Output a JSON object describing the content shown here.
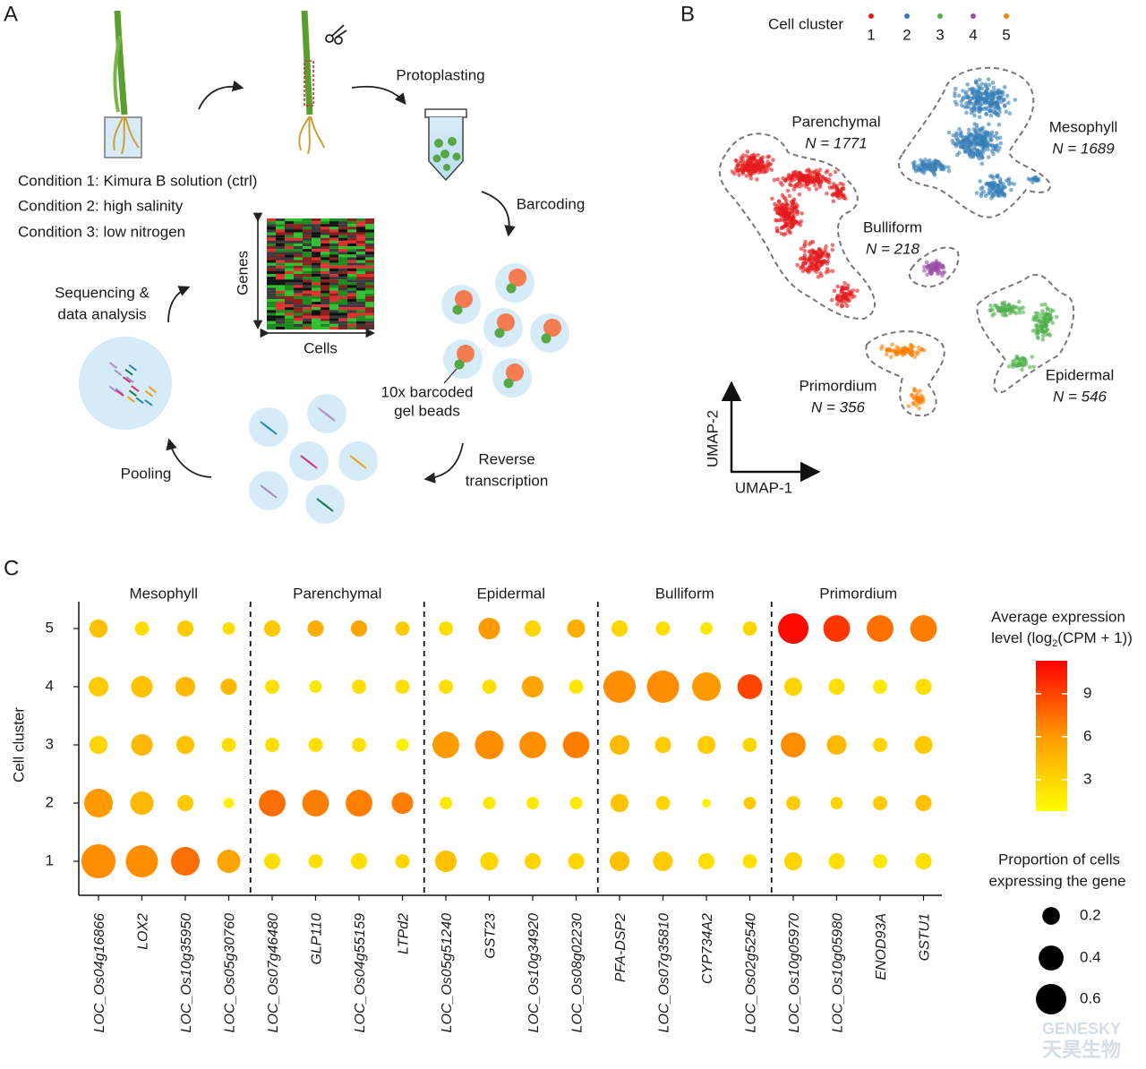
{
  "panel_a": {
    "label": "A",
    "protoplasting": "Protoplasting",
    "barcoding": "Barcoding",
    "conditions": [
      "Condition 1: Kimura B solution (ctrl)",
      "Condition 2: high salinity",
      "Condition 3: low nitrogen"
    ],
    "genes": "Genes",
    "cells": "Cells",
    "sequencing": [
      "Sequencing &",
      "data analysis"
    ],
    "beads": [
      "10x barcoded",
      "gel beads"
    ],
    "reverse": [
      "Reverse",
      "transcription"
    ],
    "pooling": "Pooling"
  },
  "panel_b": {
    "label": "B",
    "legend_title": "Cell cluster",
    "legend": [
      {
        "name": "1",
        "color": "#e41a1c"
      },
      {
        "name": "2",
        "color": "#377eb8"
      },
      {
        "name": "3",
        "color": "#4daf4a"
      },
      {
        "name": "4",
        "color": "#984ea3"
      },
      {
        "name": "5",
        "color": "#ff7f00"
      }
    ],
    "clusters": [
      {
        "name": "Parenchymal",
        "count": "N = 1771"
      },
      {
        "name": "Mesophyll",
        "count": "N = 1689"
      },
      {
        "name": "Bulliform",
        "count": "N = 218"
      },
      {
        "name": "Epidermal",
        "count": "N = 546"
      },
      {
        "name": "Primordium",
        "count": "N = 356"
      }
    ],
    "xlabel": "UMAP-1",
    "ylabel": "UMAP-2"
  },
  "chart_data": {
    "type": "dot",
    "label": "C",
    "ylabel": "Cell cluster",
    "groups": [
      {
        "name": "Mesophyll",
        "genes": [
          "LOC_Os04g16866",
          "LOX2",
          "LOC_Os10g35950",
          "LOC_Os05g30760"
        ]
      },
      {
        "name": "Parenchymal",
        "genes": [
          "LOC_Os07g46480",
          "GLP110",
          "LOC_Os04g55159",
          "LTPd2"
        ]
      },
      {
        "name": "Epidermal",
        "genes": [
          "LOC_Os05g51240",
          "GST23",
          "LOC_Os10g34920",
          "LOC_Os08g02230"
        ]
      },
      {
        "name": "Bulliform",
        "genes": [
          "PFA-DSP2",
          "LOC_Os07g35810",
          "CYP734A2",
          "LOC_Os02g52540"
        ]
      },
      {
        "name": "Primordium",
        "genes": [
          "LOC_Os10g05970",
          "LOC_Os10g05980",
          "ENOD93A",
          "GSTU1"
        ]
      }
    ],
    "series": [
      {
        "name": "1",
        "expression": [
          6.5,
          6.5,
          7.5,
          5.5,
          2.5,
          2.5,
          2.5,
          3,
          4,
          3,
          3,
          3,
          4,
          3.5,
          2.5,
          2.5,
          3,
          2.5,
          2,
          2.5
        ],
        "proportion": [
          0.75,
          0.67,
          0.53,
          0.35,
          0.17,
          0.13,
          0.17,
          0.13,
          0.3,
          0.21,
          0.17,
          0.17,
          0.25,
          0.25,
          0.17,
          0.13,
          0.21,
          0.17,
          0.13,
          0.17
        ]
      },
      {
        "name": "2",
        "expression": [
          6,
          4.5,
          3.5,
          1.5,
          7.5,
          7,
          7,
          7,
          2,
          2,
          2,
          2,
          4,
          3,
          1.5,
          3.5,
          3.5,
          3,
          3.5,
          4
        ],
        "proportion": [
          0.53,
          0.35,
          0.17,
          0.07,
          0.46,
          0.46,
          0.46,
          0.3,
          0.1,
          0.1,
          0.1,
          0.1,
          0.21,
          0.13,
          0.05,
          0.1,
          0.13,
          0.1,
          0.13,
          0.17
        ]
      },
      {
        "name": "3",
        "expression": [
          3,
          4.5,
          4,
          2.5,
          2.5,
          2.5,
          2.5,
          1.5,
          6,
          6.5,
          6.5,
          7,
          4.5,
          3.5,
          3.5,
          3,
          6.5,
          4.5,
          3,
          3.5
        ],
        "proportion": [
          0.21,
          0.3,
          0.21,
          0.13,
          0.13,
          0.13,
          0.13,
          0.1,
          0.46,
          0.53,
          0.46,
          0.46,
          0.25,
          0.17,
          0.21,
          0.13,
          0.4,
          0.25,
          0.13,
          0.21
        ]
      },
      {
        "name": "4",
        "expression": [
          3.5,
          4,
          4.5,
          4.5,
          2.5,
          2,
          2.5,
          2.5,
          2.5,
          2.5,
          5.5,
          2,
          6.5,
          6.5,
          6,
          9,
          3,
          2.5,
          2,
          2.5
        ],
        "proportion": [
          0.25,
          0.3,
          0.25,
          0.17,
          0.13,
          0.1,
          0.13,
          0.13,
          0.13,
          0.13,
          0.3,
          0.13,
          0.67,
          0.67,
          0.53,
          0.4,
          0.21,
          0.17,
          0.13,
          0.17
        ]
      },
      {
        "name": "5",
        "expression": [
          4,
          2.5,
          3.5,
          2.5,
          3.5,
          5,
          5.5,
          3.5,
          2.5,
          6,
          3,
          5,
          3,
          2.5,
          2,
          3,
          11,
          9.5,
          7.5,
          7
        ],
        "proportion": [
          0.21,
          0.13,
          0.17,
          0.1,
          0.17,
          0.17,
          0.17,
          0.13,
          0.13,
          0.3,
          0.17,
          0.21,
          0.17,
          0.13,
          0.1,
          0.13,
          0.6,
          0.46,
          0.46,
          0.46
        ]
      }
    ],
    "color_title": [
      "Average expression",
      "level (log",
      "2",
      "(CPM + 1))"
    ],
    "colorscale": [
      "#ffff00",
      "#ff9a00",
      "#ff0000"
    ],
    "clim": [
      0.8,
      11.3
    ],
    "cticks": [
      3,
      6,
      9
    ],
    "size_title": [
      "Proportion of cells",
      "expressing the gene"
    ],
    "size_legend": [
      0.2,
      0.4,
      0.6
    ]
  },
  "watermark": [
    "GENESKY",
    "天昊生物"
  ]
}
